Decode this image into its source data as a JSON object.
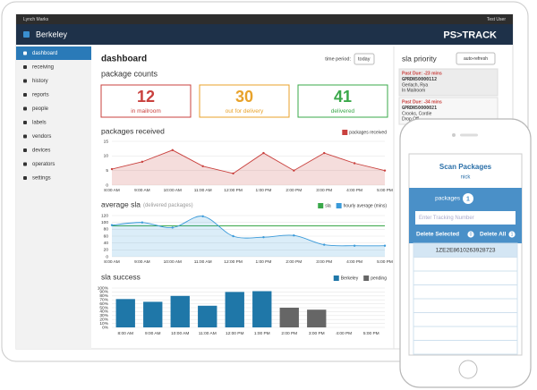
{
  "top_bar": {
    "account": "Lynch Marks",
    "user": "Test User"
  },
  "header": {
    "location": "Berkeley",
    "logo": "PS>TRACK"
  },
  "sidebar": {
    "items": [
      "dashboard",
      "receiving",
      "history",
      "reports",
      "people",
      "labels",
      "vendors",
      "devices",
      "operators",
      "settings"
    ]
  },
  "dashboard": {
    "title": "dashboard",
    "time_period_label": "time period:",
    "time_period": "today",
    "package_counts": {
      "title": "package counts",
      "boxes": [
        {
          "value": "12",
          "label": "in mailroom"
        },
        {
          "value": "30",
          "label": "out for delivery"
        },
        {
          "value": "41",
          "label": "delivered"
        }
      ]
    }
  },
  "chart_data": [
    {
      "type": "line",
      "title": "packages received",
      "categories": [
        "8:00 AM",
        "9:00 AM",
        "10:00 AM",
        "11:00 AM",
        "12:00 PM",
        "1:00 PM",
        "2:00 PM",
        "3:00 PM",
        "4:00 PM",
        "5:00 PM"
      ],
      "series": [
        {
          "name": "packages received",
          "color": "#c9413e",
          "area": true,
          "values": [
            5.5,
            8,
            12,
            6.5,
            4,
            11,
            5,
            11,
            7.5,
            5
          ]
        }
      ],
      "ylim": [
        0,
        15
      ],
      "yticks": [
        0,
        5,
        10,
        15
      ],
      "grid": true
    },
    {
      "type": "line",
      "title": "average sla",
      "subtitle": "(delivered packages)",
      "categories": [
        "8:00 AM",
        "9:00 AM",
        "10:00 AM",
        "11:00 AM",
        "12:00 PM",
        "1:00 PM",
        "2:00 PM",
        "3:00 PM",
        "4:00 PM",
        "5:00 PM"
      ],
      "series": [
        {
          "name": "sla",
          "color": "#3aa84a",
          "values": [
            90,
            90,
            90,
            90,
            90,
            90,
            90,
            90,
            90,
            90
          ]
        },
        {
          "name": "hourly average (mins)",
          "color": "#3a9ad9",
          "area": true,
          "smooth": true,
          "values": [
            92,
            100,
            85,
            118,
            60,
            57,
            62,
            35,
            32,
            32
          ]
        }
      ],
      "ylim": [
        0,
        120
      ],
      "yticks": [
        0,
        20,
        40,
        60,
        80,
        100,
        120
      ],
      "grid": true
    },
    {
      "type": "bar",
      "title": "sla success",
      "categories": [
        "8:00 AM",
        "9:00 AM",
        "10:00 AM",
        "11:00 AM",
        "12:00 PM",
        "1:00 PM",
        "2:00 PM",
        "3:00 PM",
        "4:00 PM",
        "5:00 PM"
      ],
      "series": [
        {
          "name": "Berkeley",
          "color": "#1f77a8",
          "values": [
            72,
            65,
            80,
            55,
            90,
            92,
            null,
            null,
            null,
            null
          ]
        },
        {
          "name": "pending",
          "color": "#666666",
          "values": [
            null,
            null,
            null,
            null,
            null,
            null,
            50,
            45,
            null,
            null
          ]
        }
      ],
      "ylim": [
        0,
        100
      ],
      "yticks": [
        {
          "value": 0,
          "label": "0%"
        },
        {
          "value": 10,
          "label": "10%"
        },
        {
          "value": 20,
          "label": "20%"
        },
        {
          "value": 30,
          "label": "30%"
        },
        {
          "value": 40,
          "label": "40%"
        },
        {
          "value": 50,
          "label": "50%"
        },
        {
          "value": 60,
          "label": "60%"
        },
        {
          "value": 70,
          "label": "70%"
        },
        {
          "value": 80,
          "label": "80%"
        },
        {
          "value": 90,
          "label": "90%"
        },
        {
          "value": 100,
          "label": "100%"
        }
      ],
      "grid": true
    }
  ],
  "sla_priority": {
    "title": "sla priority",
    "button": "auto-refresh",
    "items": [
      {
        "status": "Past Due: -23 mins",
        "tracking": "GPRDN50000112",
        "name": "Gerlach, Rya",
        "location": "In Mailroom"
      },
      {
        "status": "Past Due: -34 mins",
        "tracking": "GPRDN50000021",
        "name": "Crooks, Cordie",
        "location": "Drop Off"
      }
    ]
  },
  "phone": {
    "title": "Scan Packages",
    "user": "nick",
    "packages_label": "packages",
    "packages_count": "1",
    "input_placeholder": "Enter Tracking Number",
    "delete_selected": "Delete Selected",
    "delete_selected_count": "0",
    "delete_all": "Delete All",
    "delete_all_count": "1",
    "list": [
      "1ZE2E8610263928723"
    ]
  }
}
